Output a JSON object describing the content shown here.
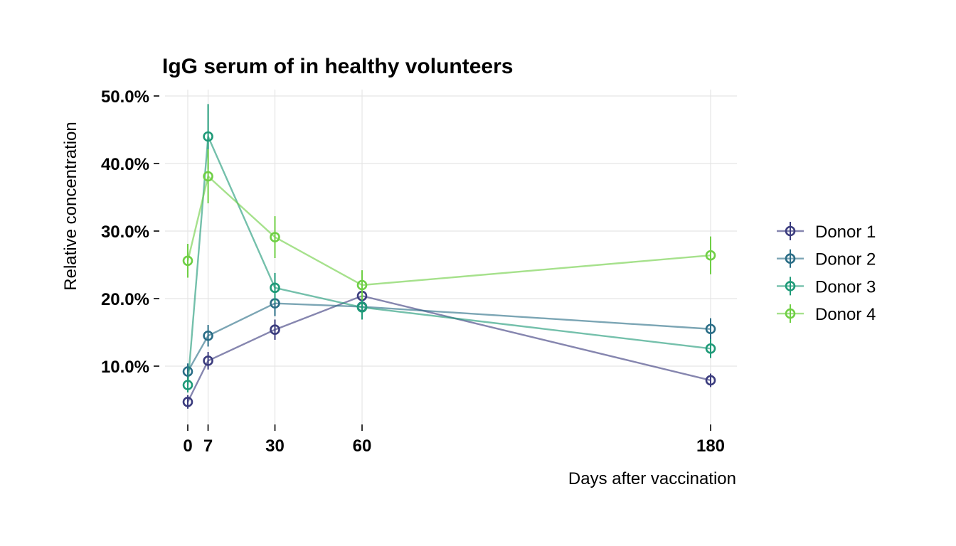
{
  "chart_data": {
    "type": "line",
    "title": "IgG serum of in healthy volunteers",
    "xlabel": "Days after vaccination",
    "ylabel": "Relative concentration",
    "x": [
      0,
      7,
      30,
      60,
      180
    ],
    "x_ticks": [
      0,
      7,
      30,
      60,
      180
    ],
    "x_tick_labels": [
      "0",
      "7",
      "30",
      "60",
      "180"
    ],
    "xlim": [
      0,
      180
    ],
    "y_ticks": [
      0.1,
      0.2,
      0.3,
      0.4,
      0.5
    ],
    "y_tick_labels": [
      "10.0%",
      "20.0%",
      "30.0%",
      "40.0%",
      "50.0%"
    ],
    "ylim": [
      0.01,
      0.51
    ],
    "grid": true,
    "legend_position": "right",
    "series": [
      {
        "name": "Donor 1",
        "color": "#3b3c7e",
        "values": [
          0.047,
          0.108,
          0.154,
          0.204,
          0.079
        ],
        "errors": [
          0.01,
          0.013,
          0.015,
          0.016,
          0.01
        ]
      },
      {
        "name": "Donor 2",
        "color": "#2a6d86",
        "values": [
          0.092,
          0.145,
          0.193,
          0.188,
          0.155
        ],
        "errors": [
          0.012,
          0.016,
          0.019,
          0.018,
          0.016
        ]
      },
      {
        "name": "Donor 3",
        "color": "#1f9a78",
        "values": [
          0.072,
          0.44,
          0.216,
          0.187,
          0.126
        ],
        "errors": [
          0.011,
          0.048,
          0.022,
          0.018,
          0.014
        ]
      },
      {
        "name": "Donor 4",
        "color": "#6fcf45",
        "values": [
          0.256,
          0.381,
          0.291,
          0.22,
          0.264
        ],
        "errors": [
          0.025,
          0.04,
          0.031,
          0.022,
          0.028
        ]
      }
    ]
  }
}
